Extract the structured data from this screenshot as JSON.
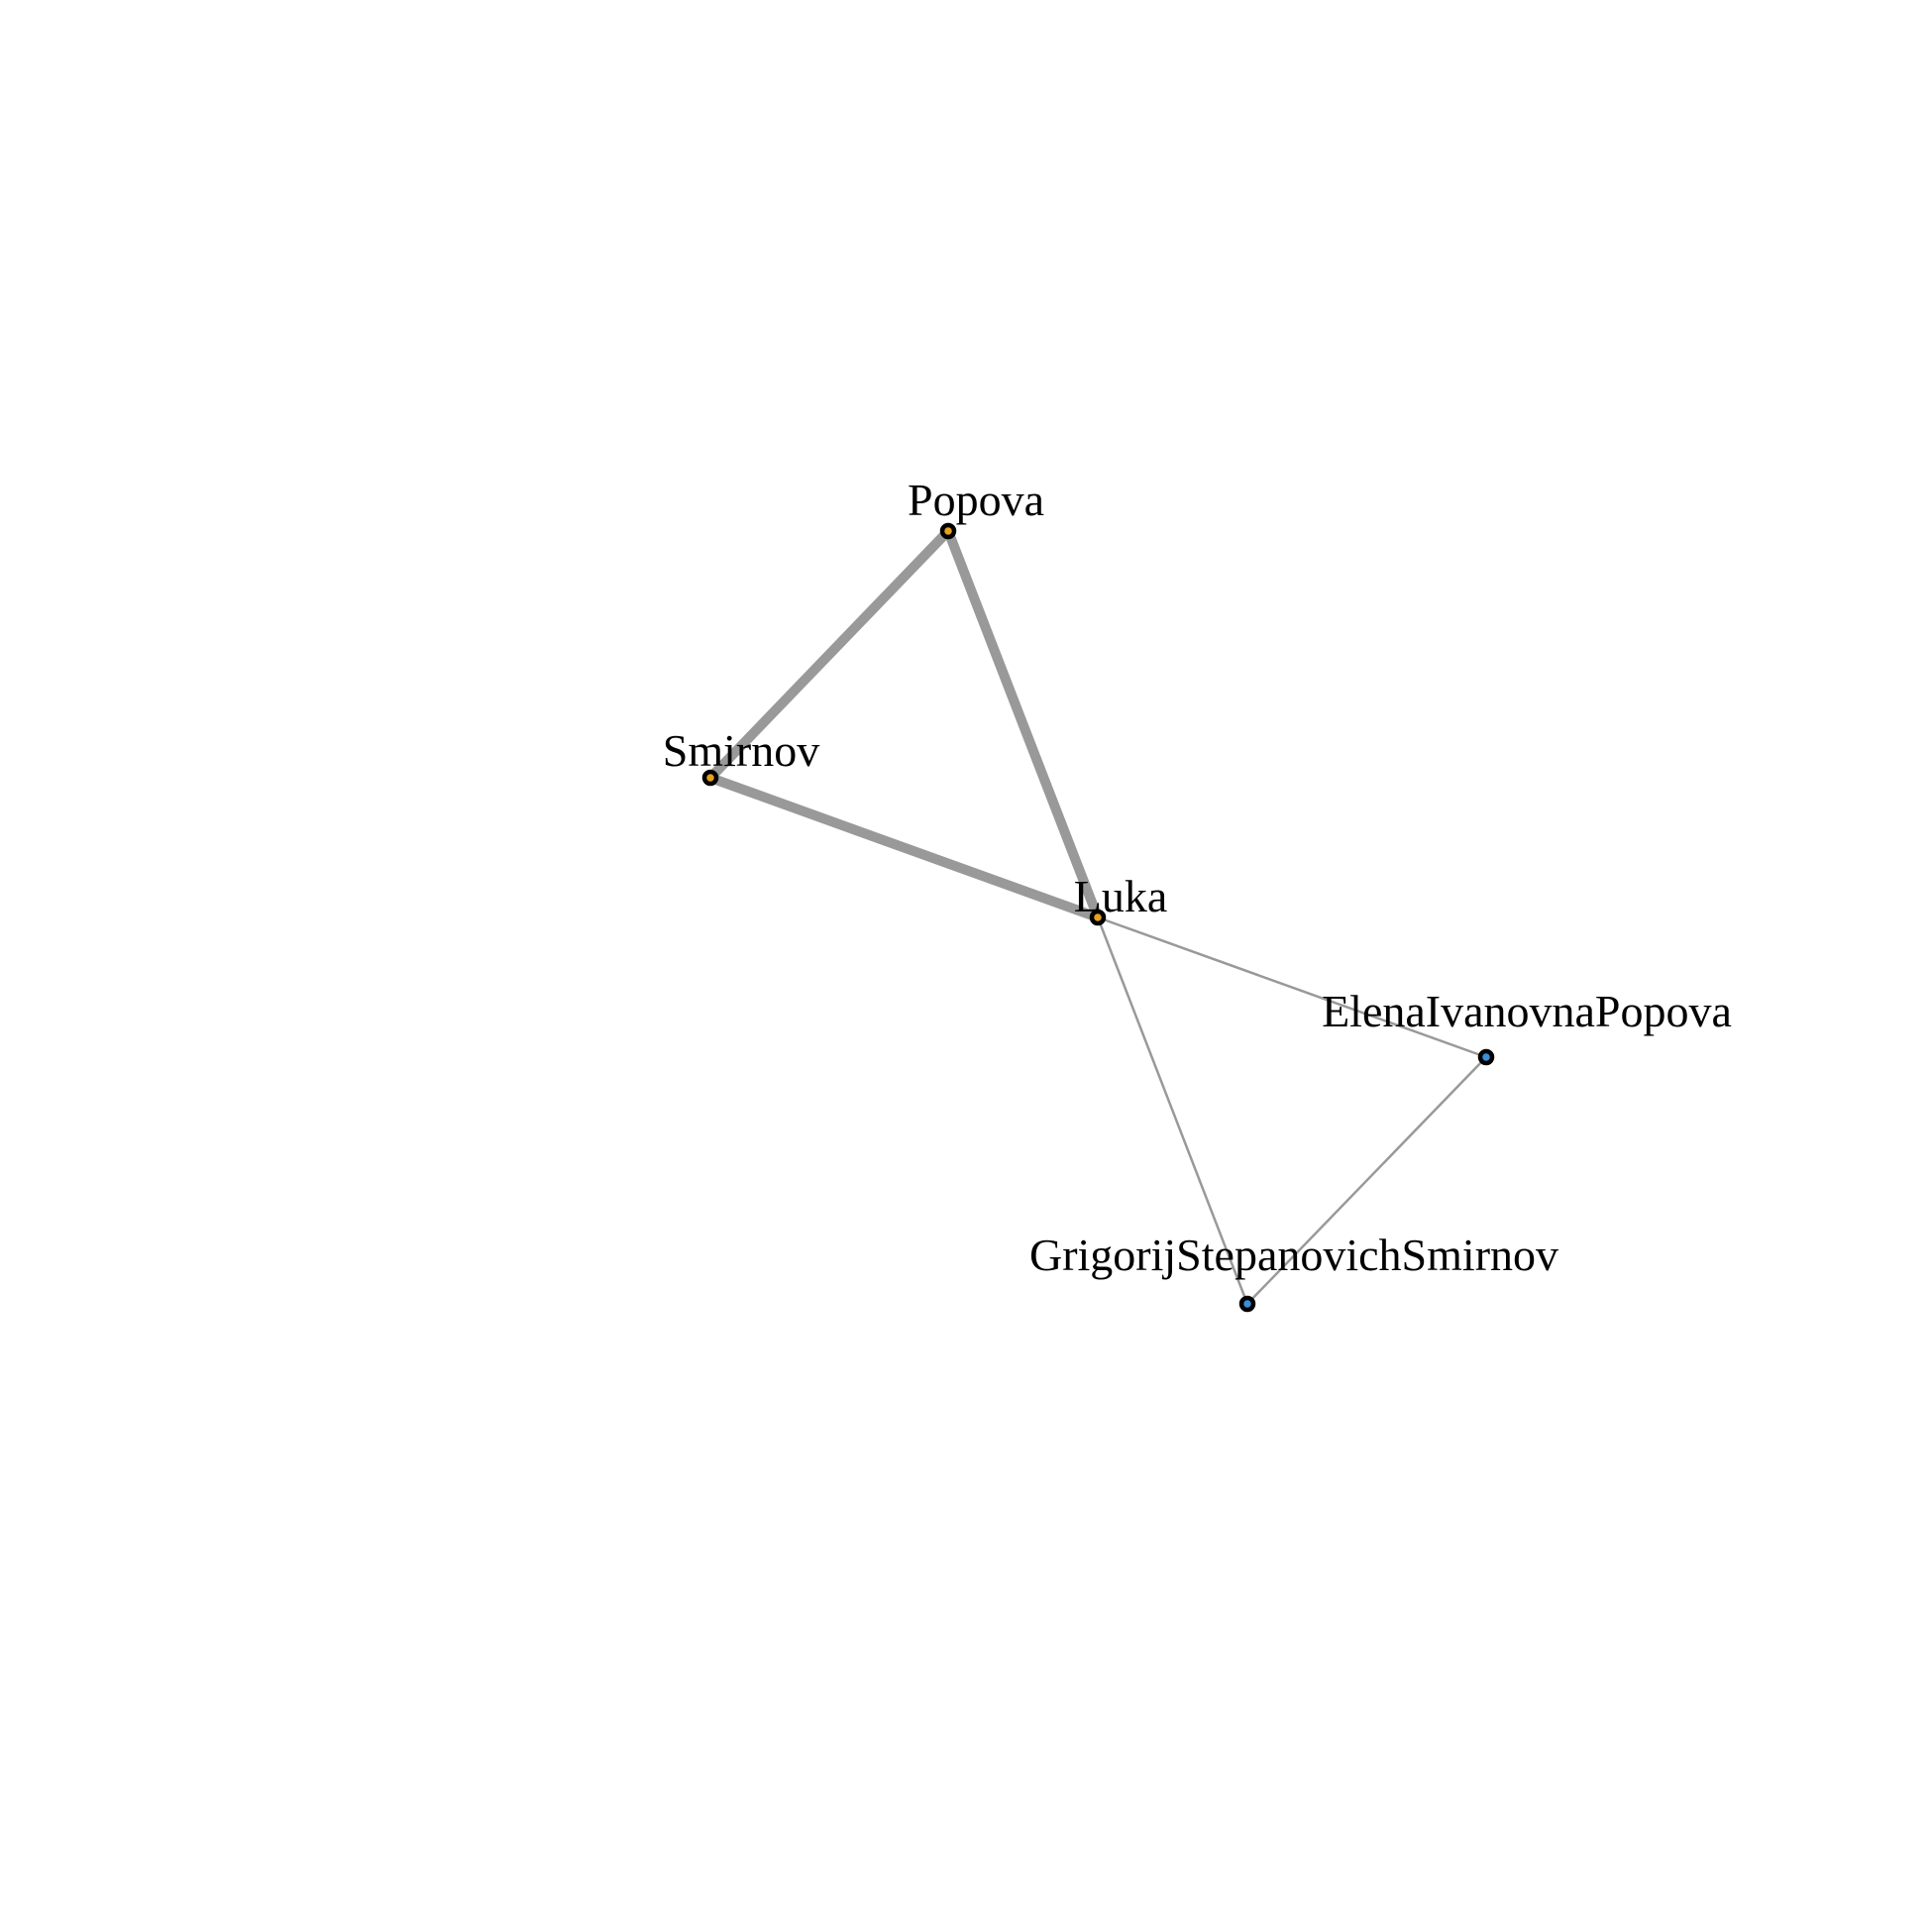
{
  "graph": {
    "nodes": [
      {
        "id": "popova",
        "label": "Popova",
        "color": "#e6a020"
      },
      {
        "id": "smirnov",
        "label": "Smirnov",
        "color": "#e6a020"
      },
      {
        "id": "luka",
        "label": "Luka",
        "color": "#e6a020"
      },
      {
        "id": "elena",
        "label": "ElenaIvanovnaPopova",
        "color": "#3a8fd8"
      },
      {
        "id": "grigorij",
        "label": "GrigorijStepanovichSmirnov",
        "color": "#3a8fd8"
      }
    ],
    "edges": [
      {
        "source": "popova",
        "target": "smirnov",
        "weight": "strong"
      },
      {
        "source": "popova",
        "target": "luka",
        "weight": "strong"
      },
      {
        "source": "smirnov",
        "target": "luka",
        "weight": "strong"
      },
      {
        "source": "luka",
        "target": "elena",
        "weight": "weak"
      },
      {
        "source": "luka",
        "target": "grigorij",
        "weight": "weak"
      },
      {
        "source": "elena",
        "target": "grigorij",
        "weight": "weak"
      }
    ],
    "edge_color": "#999999",
    "node_border_color": "#000000"
  }
}
